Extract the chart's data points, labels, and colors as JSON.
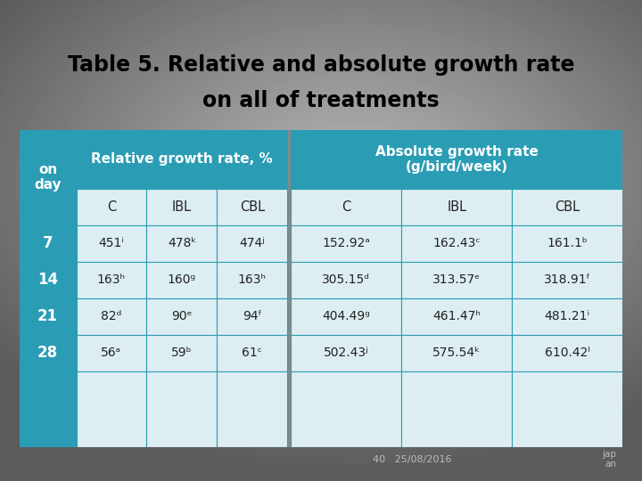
{
  "title_line1": "Table 5. Relative and absolute growth rate",
  "title_line2": "on all of treatments",
  "header1_text": "Relative growth rate, %",
  "header2_text": "Absolute growth rate\n(g/bird/week)",
  "header_bg": "#2a9db5",
  "header_text_color": "#ffffff",
  "subheader_bg": "#ddeef3",
  "row_label_bg": "#2a9db5",
  "row_label_color": "#ffffff",
  "data_bg": "#ddeef3",
  "col_headers": [
    "C",
    "IBL",
    "CBL",
    "C",
    "IBL",
    "CBL"
  ],
  "row_labels": [
    "7",
    "14",
    "21",
    "28"
  ],
  "data": [
    [
      "451ⁱ",
      "478ᵏ",
      "474ʲ",
      "152.92ᵃ",
      "162.43ᶜ",
      "161.1ᵇ"
    ],
    [
      "163ʰ",
      "160ᵍ",
      "163ʰ",
      "305.15ᵈ",
      "313.57ᵉ",
      "318.91ᶠ"
    ],
    [
      "82ᵈ",
      "90ᵉ",
      "94ᶠ",
      "404.49ᵍ",
      "461.47ʰ",
      "481.21ⁱ"
    ],
    [
      "56ᵃ",
      "59ᵇ",
      "61ᶜ",
      "502.43ʲ",
      "575.54ᵏ",
      "610.42ˡ"
    ]
  ],
  "footer_left": "40   25/08/2016",
  "footer_right": "jap\nan",
  "title_color": "#000000",
  "data_text_color": "#222222",
  "border_color": "#2a9db5",
  "sep_bg": "#888888"
}
